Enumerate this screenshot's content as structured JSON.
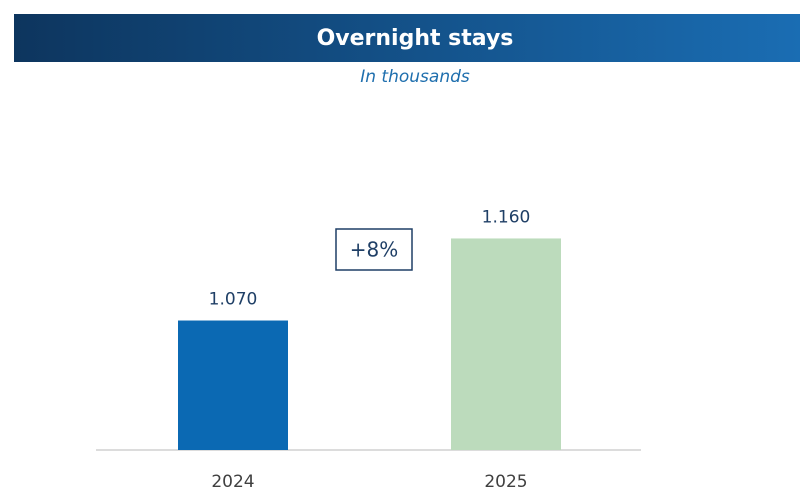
{
  "chart_data": {
    "type": "bar",
    "title": "Overnight stays",
    "subtitle": "In thousands",
    "categories": [
      "2024",
      "2025"
    ],
    "values": [
      1070,
      1160
    ],
    "value_labels": [
      "1.070",
      "1.160"
    ],
    "colors": [
      "#0b69b3",
      "#bcdbbc"
    ],
    "ylim": [
      928,
      1257
    ],
    "annotation": "+8%"
  }
}
